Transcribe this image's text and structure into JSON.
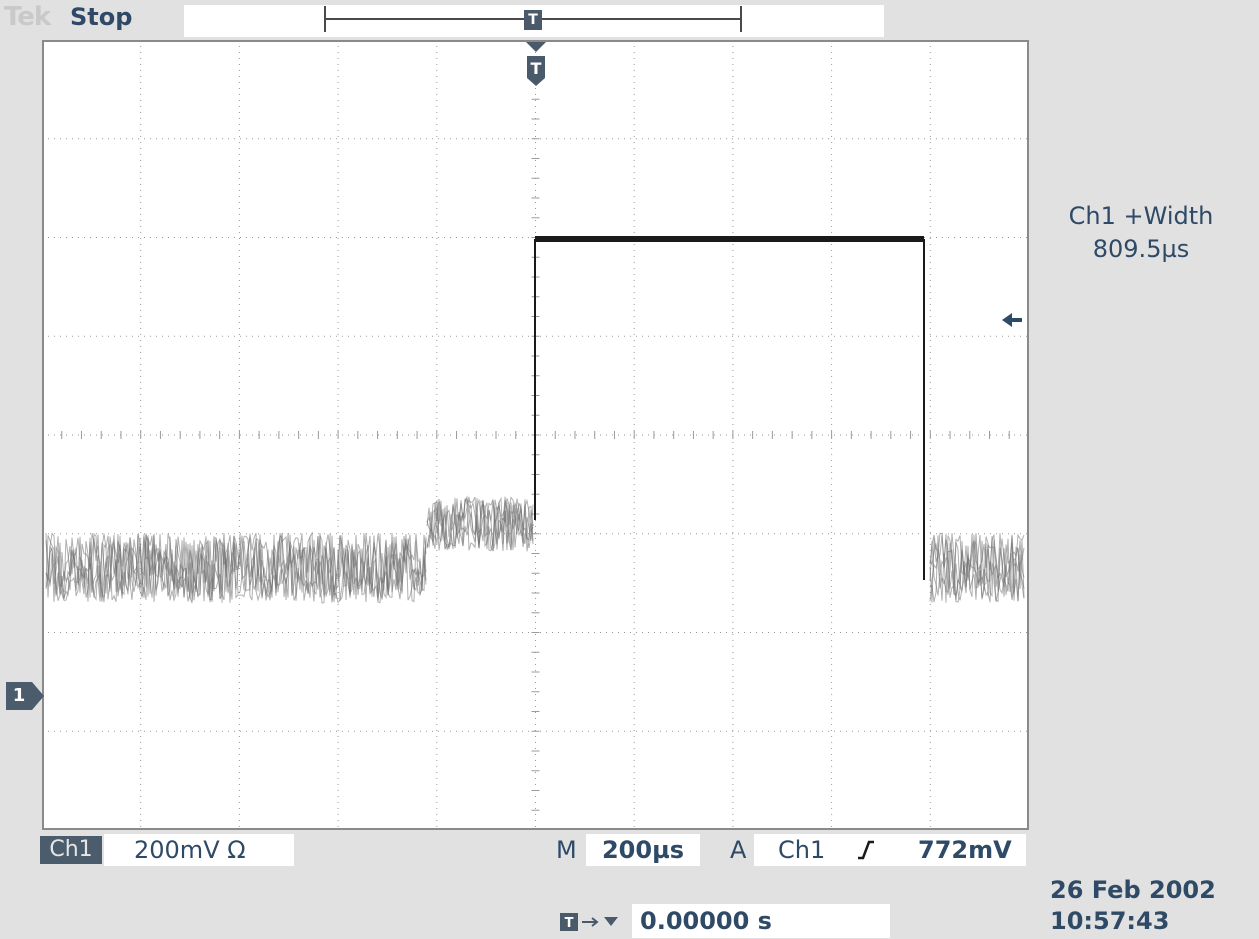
{
  "header": {
    "logo_text": "Tek",
    "acquisition_state": "Stop",
    "record_trigger_glyph": "T"
  },
  "channel_marker": {
    "label": "1"
  },
  "measurement": {
    "label": "Ch1 +Width",
    "value": "809.5µs"
  },
  "status_bar": {
    "channel_tag": "Ch1",
    "channel_scale": "200mV",
    "channel_coupling_symbol": "Ω",
    "timebase_prefix": "M",
    "timebase": "200µs",
    "trigger_prefix": "A",
    "trigger_source": "Ch1",
    "trigger_level": "772mV"
  },
  "trigger_delay": {
    "value": "0.00000 s"
  },
  "datetime": {
    "date": "26 Feb  2002",
    "time": "10:57:43"
  },
  "colors": {
    "background": "#e1e1e1",
    "graticule": "#ffffff",
    "text": "#2e4a66",
    "trace": "#1a1a1a",
    "tag": "#4b5c6c"
  },
  "icons": [
    "trigger-position-icon",
    "channel-1-ground-marker-icon",
    "trigger-level-arrow-icon",
    "rising-edge-icon",
    "trigger-delay-icon"
  ]
}
